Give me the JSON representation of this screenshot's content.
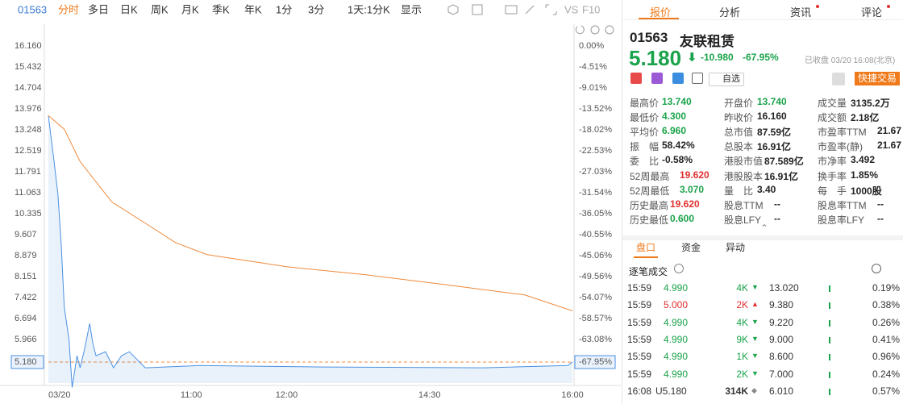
{
  "toolbar": {
    "code": "01563",
    "tabs": [
      "分时",
      "多日",
      "日K",
      "周K",
      "月K",
      "季K",
      "年K",
      "1分",
      "3分",
      "1天:1分K",
      "显示"
    ],
    "extra": [
      "VS",
      "F10"
    ]
  },
  "chart_data": {
    "type": "line",
    "xlim": [
      0,
      330
    ],
    "xticks": [
      {
        "value": 0,
        "label": "03/20"
      },
      {
        "value": 90,
        "label": "11:00"
      },
      {
        "value": 150,
        "label": "12:00"
      },
      {
        "value": 240,
        "label": "14:30"
      },
      {
        "value": 330,
        "label": "16:00"
      }
    ],
    "ylim": [
      4.452,
      16.16
    ],
    "yticks": [
      {
        "value": 16.16,
        "label": "16.160"
      },
      15.432,
      14.704,
      13.976,
      13.248,
      12.519,
      11.791,
      11.063,
      10.335,
      9.607,
      8.879,
      8.151,
      7.422,
      6.694,
      5.966,
      {
        "value": 5.18,
        "label": "5.180"
      }
    ],
    "y2lim": [
      -72.45,
      0
    ],
    "y2ticks": [
      {
        "value": 0,
        "label": "0.00%"
      },
      {
        "value": -4.51,
        "label": "-4.51%"
      },
      {
        "value": -9.01,
        "label": "-9.01%"
      },
      {
        "value": -13.52,
        "label": "-13.52%"
      },
      {
        "value": -18.02,
        "label": "-18.02%"
      },
      {
        "value": -22.53,
        "label": "-22.53%"
      },
      {
        "value": -27.03,
        "label": "-27.03%"
      },
      {
        "value": -31.54,
        "label": "-31.54%"
      },
      {
        "value": -36.05,
        "label": "-36.05%"
      },
      {
        "value": -40.55,
        "label": "-40.55%"
      },
      {
        "value": -45.06,
        "label": "-45.06%"
      },
      {
        "value": -49.56,
        "label": "-49.56%"
      },
      {
        "value": -54.07,
        "label": "-54.07%"
      },
      {
        "value": -58.57,
        "label": "-58.57%"
      },
      {
        "value": -63.08,
        "label": "-63.08%"
      },
      {
        "value": -67.95,
        "label": "-67.95%"
      }
    ],
    "series": [
      {
        "color": "#4a90e2",
        "x": [
          0,
          3,
          6,
          8,
          10,
          13,
          15,
          18,
          20,
          23,
          26,
          28,
          30,
          36,
          41,
          46,
          51,
          56,
          61,
          96,
          173,
          274,
          327,
          330
        ],
        "values": [
          13.74,
          12.42,
          11.02,
          9.33,
          7.09,
          5.96,
          4.3,
          5.4,
          4.98,
          5.68,
          6.52,
          5.82,
          5.4,
          5.54,
          4.98,
          5.4,
          5.54,
          5.26,
          4.98,
          5.06,
          5.01,
          4.98,
          5.06,
          5.18
        ]
      },
      {
        "color": "#f08a3c",
        "x": [
          0,
          10,
          20,
          40,
          60,
          80,
          100,
          150,
          200,
          250,
          300,
          330
        ],
        "values": [
          13.74,
          13.27,
          12.14,
          10.74,
          10.04,
          9.33,
          8.91,
          8.49,
          8.21,
          7.87,
          7.51,
          6.96
        ]
      }
    ]
  },
  "panel": {
    "tabs": [
      "报价",
      "分析",
      "资讯",
      "评论"
    ],
    "code": "01563",
    "name": "友联租赁",
    "price": "5.180",
    "change": "-10.980",
    "pct": "-67.95%",
    "status": "已收盘 03/20 16:08(北京)",
    "watch": "自选",
    "trade": "快捷交易",
    "stats": [
      [
        {
          "label": "最高价",
          "value": "13.740",
          "color": "green"
        },
        {
          "label": "开盘价",
          "value": "13.740",
          "color": "green"
        },
        {
          "label": "成交量",
          "value": "3135.2万"
        }
      ],
      [
        {
          "label": "最低价",
          "value": "4.300",
          "color": "green"
        },
        {
          "label": "昨收价",
          "value": "16.160"
        },
        {
          "label": "成交额",
          "value": "2.18亿"
        }
      ],
      [
        {
          "label": "平均价",
          "value": "6.960",
          "color": "green"
        },
        {
          "label": "总市值",
          "value": "87.59亿"
        },
        {
          "label": "市盈率TTM",
          "value": "21.67"
        }
      ],
      [
        {
          "label": "振　幅",
          "value": "58.42%"
        },
        {
          "label": "总股本",
          "value": "16.91亿"
        },
        {
          "label": "市盈率(静)",
          "value": "21.67"
        }
      ],
      [
        {
          "label": "委　比",
          "value": "-0.58%"
        },
        {
          "label": "港股市值",
          "value": "87.589亿"
        },
        {
          "label": "市净率",
          "value": "3.492"
        }
      ],
      [
        {
          "label": "52周最高",
          "value": "19.620",
          "color": "red"
        },
        {
          "label": "港股股本",
          "value": "16.91亿"
        },
        {
          "label": "换手率",
          "value": "1.85%"
        }
      ],
      [
        {
          "label": "52周最低",
          "value": "3.070",
          "color": "green"
        },
        {
          "label": "量　比",
          "value": "3.40"
        },
        {
          "label": "每　手",
          "value": "1000股"
        }
      ],
      [
        {
          "label": "历史最高",
          "value": "19.620",
          "color": "red"
        },
        {
          "label": "股息TTM",
          "value": "--"
        },
        {
          "label": "股息率TTM",
          "value": "--"
        }
      ],
      [
        {
          "label": "历史最低",
          "value": "0.600",
          "color": "green"
        },
        {
          "label": "股息LFY",
          "value": "--"
        },
        {
          "label": "股息率LFY",
          "value": "--"
        }
      ]
    ],
    "subtabs": [
      "盘口",
      "资金",
      "异动"
    ],
    "trades_title": "逐笔成交",
    "trades": [
      {
        "time": "15:59",
        "price": "4.990",
        "volume": "4K",
        "dir": "down",
        "amount": "13.020",
        "ratio": "0.19%"
      },
      {
        "time": "15:59",
        "price": "5.000",
        "volume": "2K",
        "dir": "up",
        "amount": "9.380",
        "ratio": "0.38%"
      },
      {
        "time": "15:59",
        "price": "4.990",
        "volume": "4K",
        "dir": "down",
        "amount": "9.220",
        "ratio": "0.26%"
      },
      {
        "time": "15:59",
        "price": "4.990",
        "volume": "9K",
        "dir": "down",
        "amount": "9.000",
        "ratio": "0.41%"
      },
      {
        "time": "15:59",
        "price": "4.990",
        "volume": "1K",
        "dir": "down",
        "amount": "8.600",
        "ratio": "0.96%"
      },
      {
        "time": "15:59",
        "price": "4.990",
        "volume": "2K",
        "dir": "down",
        "amount": "7.000",
        "ratio": "0.24%"
      },
      {
        "time": "16:08",
        "price": "U5.180",
        "volume": "314K",
        "dir": "neutral",
        "amount": "6.010",
        "ratio": "0.57%"
      }
    ]
  }
}
